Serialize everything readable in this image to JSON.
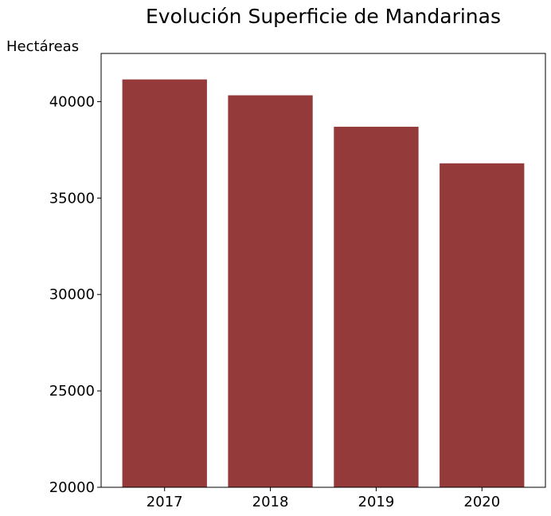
{
  "chart_data": {
    "type": "bar",
    "title": "Evolución Superficie de Mandarinas",
    "ylabel": "Hectáreas",
    "xlabel": "",
    "categories": [
      "2017",
      "2018",
      "2019",
      "2020"
    ],
    "values": [
      41150,
      40330,
      38700,
      36800
    ],
    "ylim": [
      20000,
      42500
    ],
    "yticks": [
      20000,
      25000,
      30000,
      35000,
      40000
    ],
    "grid": false,
    "bar_color": "#943a3a"
  }
}
